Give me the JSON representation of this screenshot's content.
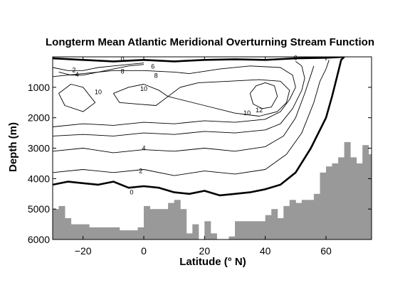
{
  "chart_data": {
    "type": "contour",
    "title": "Longterm Mean Atlantic Meridional Overturning Stream Function",
    "xlabel": "Latitude (° N)",
    "ylabel": "Depth (m)",
    "xlim": [
      -30,
      75
    ],
    "ylim": [
      6000,
      0
    ],
    "y_inverted": true,
    "xticks": [
      -20,
      0,
      20,
      40,
      60
    ],
    "xtick_labels": [
      "−20",
      "0",
      "20",
      "40",
      "60"
    ],
    "yticks": [
      1000,
      2000,
      3000,
      4000,
      5000,
      6000
    ],
    "ytick_labels": [
      "1000",
      "2000",
      "3000",
      "4000",
      "5000",
      "6000"
    ],
    "colors": {
      "bathymetry": "#999999",
      "contour": "#000000",
      "background": "#ffffff"
    },
    "contour_levels": [
      0,
      2,
      4,
      6,
      8,
      10,
      12
    ],
    "contours": [
      {
        "level": 0,
        "label": "0",
        "bold": true,
        "points": [
          [
            -30,
            4200
          ],
          [
            -25,
            4100
          ],
          [
            -20,
            4150
          ],
          [
            -15,
            4200
          ],
          [
            -10,
            4100
          ],
          [
            -5,
            4300
          ],
          [
            0,
            4250
          ],
          [
            5,
            4300
          ],
          [
            10,
            4450
          ],
          [
            15,
            4500
          ],
          [
            20,
            4400
          ],
          [
            25,
            4550
          ],
          [
            30,
            4500
          ],
          [
            35,
            4450
          ],
          [
            40,
            4350
          ],
          [
            45,
            4200
          ],
          [
            50,
            3800
          ],
          [
            55,
            3000
          ],
          [
            60,
            2000
          ],
          [
            62,
            1300
          ],
          [
            64,
            500
          ],
          [
            65,
            100
          ],
          [
            66,
            0
          ]
        ]
      },
      {
        "level": 0,
        "label": "0",
        "bold": true,
        "points": [
          [
            -30,
            50
          ],
          [
            -20,
            100
          ],
          [
            -10,
            150
          ],
          [
            0,
            100
          ],
          [
            10,
            150
          ],
          [
            20,
            100
          ],
          [
            30,
            80
          ],
          [
            40,
            100
          ],
          [
            50,
            50
          ],
          [
            60,
            30
          ],
          [
            66,
            0
          ]
        ]
      },
      {
        "level": 2,
        "label": "2",
        "points": [
          [
            -30,
            3800
          ],
          [
            -20,
            3700
          ],
          [
            -10,
            3800
          ],
          [
            0,
            3700
          ],
          [
            10,
            3900
          ],
          [
            20,
            3750
          ],
          [
            30,
            3850
          ],
          [
            40,
            3700
          ],
          [
            47,
            3200
          ],
          [
            52,
            2500
          ],
          [
            56,
            1500
          ],
          [
            58,
            800
          ],
          [
            60,
            400
          ],
          [
            61,
            100
          ]
        ]
      },
      {
        "level": 2,
        "label": "2",
        "points": [
          [
            -30,
            350
          ],
          [
            -25,
            450
          ],
          [
            -20,
            450
          ],
          [
            -15,
            350
          ],
          [
            -10,
            300
          ],
          [
            -5,
            250
          ],
          [
            0,
            200
          ]
        ]
      },
      {
        "level": 4,
        "label": "4",
        "points": [
          [
            -30,
            3100
          ],
          [
            -20,
            3000
          ],
          [
            -10,
            3150
          ],
          [
            0,
            3050
          ],
          [
            10,
            3100
          ],
          [
            20,
            3000
          ],
          [
            30,
            3100
          ],
          [
            40,
            2950
          ],
          [
            46,
            2600
          ],
          [
            50,
            2000
          ],
          [
            53,
            1200
          ],
          [
            55,
            600
          ],
          [
            56,
            300
          ]
        ]
      },
      {
        "level": 4,
        "label": "4",
        "points": [
          [
            -28,
            500
          ],
          [
            -24,
            600
          ],
          [
            -20,
            600
          ],
          [
            -15,
            500
          ],
          [
            -10,
            400
          ],
          [
            -5,
            300
          ],
          [
            0,
            250
          ]
        ]
      },
      {
        "level": 6,
        "label": "6",
        "points": [
          [
            -30,
            2600
          ],
          [
            -20,
            2550
          ],
          [
            -10,
            2600
          ],
          [
            0,
            2500
          ],
          [
            10,
            2550
          ],
          [
            20,
            2450
          ],
          [
            30,
            2500
          ],
          [
            40,
            2400
          ],
          [
            45,
            2200
          ],
          [
            49,
            1700
          ],
          [
            52,
            1100
          ],
          [
            53,
            700
          ],
          [
            52,
            300
          ],
          [
            50,
            150
          ]
        ]
      },
      {
        "level": 8,
        "label": "8",
        "points": [
          [
            -30,
            2300
          ],
          [
            -20,
            2200
          ],
          [
            -10,
            2250
          ],
          [
            0,
            2150
          ],
          [
            10,
            2200
          ],
          [
            20,
            2100
          ],
          [
            30,
            2150
          ],
          [
            40,
            2050
          ],
          [
            45,
            1800
          ],
          [
            48,
            1400
          ],
          [
            50,
            1000
          ],
          [
            49,
            600
          ],
          [
            45,
            350
          ],
          [
            35,
            300
          ],
          [
            25,
            400
          ],
          [
            15,
            550
          ],
          [
            10,
            500
          ],
          [
            0,
            450
          ],
          [
            -10,
            450
          ],
          [
            -20,
            550
          ],
          [
            -30,
            650
          ]
        ]
      },
      {
        "level": 10,
        "label": "10",
        "points": [
          [
            -28,
            1200
          ],
          [
            -24,
            900
          ],
          [
            -20,
            1000
          ],
          [
            -16,
            1500
          ],
          [
            -20,
            1800
          ],
          [
            -26,
            1600
          ],
          [
            -28,
            1200
          ]
        ]
      },
      {
        "level": 10,
        "label": "10",
        "points": [
          [
            -10,
            1200
          ],
          [
            -5,
            1000
          ],
          [
            0,
            900
          ],
          [
            5,
            1100
          ],
          [
            8,
            1300
          ],
          [
            12,
            1000
          ],
          [
            18,
            850
          ],
          [
            28,
            800
          ],
          [
            38,
            750
          ],
          [
            45,
            800
          ],
          [
            48,
            1100
          ],
          [
            47,
            1500
          ],
          [
            44,
            1800
          ],
          [
            38,
            1950
          ],
          [
            30,
            1850
          ],
          [
            20,
            1600
          ],
          [
            12,
            1400
          ],
          [
            8,
            1300
          ],
          [
            4,
            1600
          ],
          [
            -2,
            1550
          ],
          [
            -8,
            1500
          ],
          [
            -10,
            1200
          ]
        ]
      },
      {
        "level": 12,
        "label": "12",
        "points": [
          [
            35,
            1200
          ],
          [
            37,
            950
          ],
          [
            40,
            850
          ],
          [
            43,
            950
          ],
          [
            44,
            1300
          ],
          [
            42,
            1650
          ],
          [
            39,
            1700
          ],
          [
            36,
            1550
          ],
          [
            35,
            1200
          ]
        ]
      }
    ],
    "contour_labels": [
      {
        "text": "0",
        "x": -7,
        "y": 80
      },
      {
        "text": "2",
        "x": -23,
        "y": 430
      },
      {
        "text": "4",
        "x": -22,
        "y": 580
      },
      {
        "text": "8",
        "x": -7,
        "y": 480
      },
      {
        "text": "6",
        "x": 3,
        "y": 320
      },
      {
        "text": "8",
        "x": 4,
        "y": 620
      },
      {
        "text": "10",
        "x": -15,
        "y": 1150
      },
      {
        "text": "10",
        "x": 0,
        "y": 1050
      },
      {
        "text": "10",
        "x": 34,
        "y": 1850
      },
      {
        "text": "12",
        "x": 38,
        "y": 1750
      },
      {
        "text": "0",
        "x": 50,
        "y": 30
      },
      {
        "text": "4",
        "x": 0,
        "y": 3000
      },
      {
        "text": "2",
        "x": -1,
        "y": 3750
      },
      {
        "text": "0",
        "x": -4,
        "y": 4450
      }
    ],
    "bathymetry": {
      "description": "sea-floor depth by latitude (gray filled area below)",
      "x": [
        -30,
        -28,
        -26,
        -24,
        -22,
        -20,
        -18,
        -16,
        -14,
        -12,
        -10,
        -8,
        -6,
        -4,
        -2,
        0,
        2,
        4,
        6,
        8,
        10,
        12,
        14,
        16,
        18,
        20,
        22,
        24,
        26,
        28,
        30,
        32,
        34,
        36,
        38,
        40,
        42,
        44,
        46,
        48,
        50,
        52,
        54,
        56,
        58,
        60,
        62,
        64,
        66,
        68,
        70,
        72,
        74,
        75
      ],
      "y": [
        5000,
        4900,
        5300,
        5500,
        5500,
        5500,
        5600,
        5600,
        5600,
        5600,
        5600,
        5700,
        5700,
        5700,
        5600,
        4900,
        5000,
        5000,
        5000,
        4800,
        4700,
        5000,
        5800,
        5500,
        6000,
        5400,
        5800,
        6000,
        6000,
        5900,
        5400,
        5400,
        5400,
        5400,
        5400,
        5200,
        5000,
        5300,
        4900,
        4700,
        4800,
        4700,
        4700,
        4500,
        3800,
        3600,
        3500,
        3300,
        2800,
        3300,
        3500,
        2900,
        3200,
        3500
      ]
    }
  }
}
